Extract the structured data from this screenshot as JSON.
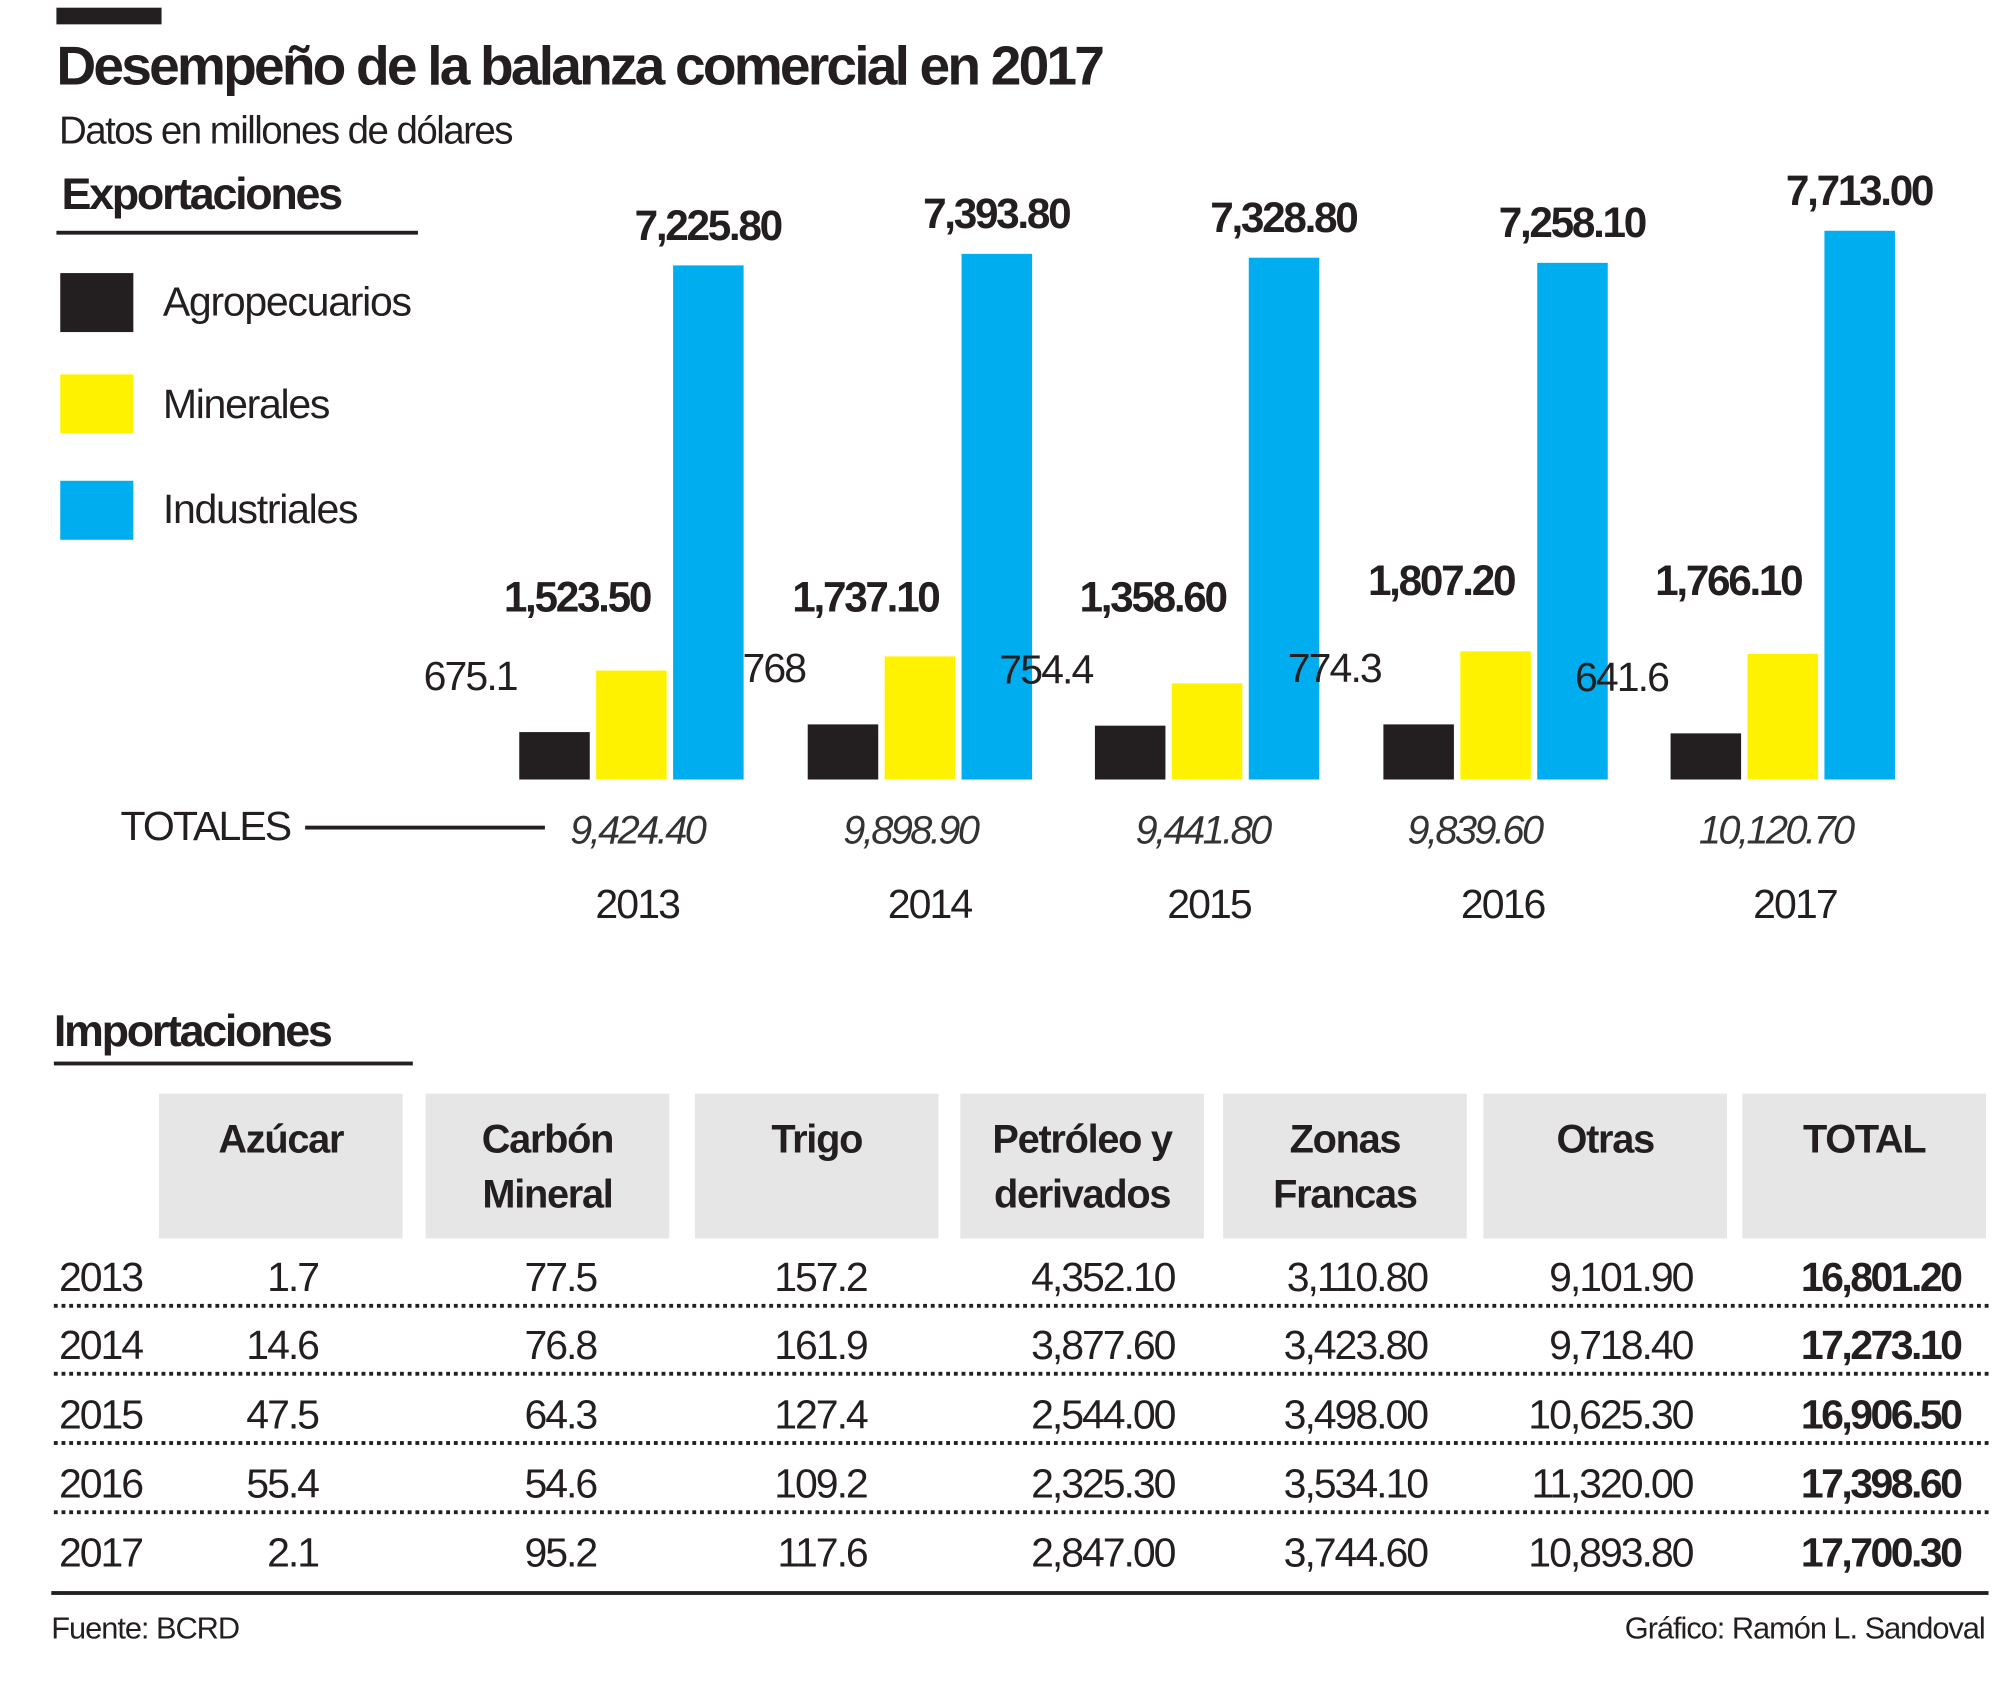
{
  "title": "Desempeño de la balanza comercial en 2017",
  "subtitle": "Datos en millones de dólares",
  "exports_heading": "Exportaciones",
  "imports_heading": "Importaciones",
  "totals_label": "TOTALES",
  "source": "Fuente: BCRD",
  "credit": "Gráfico: Ramón L. Sandoval",
  "chart_data": {
    "type": "bar",
    "title": "Exportaciones",
    "categories": [
      "2013",
      "2014",
      "2015",
      "2016",
      "2017"
    ],
    "series": [
      {
        "name": "Agropecuarios",
        "color": "#231f20",
        "values": [
          675.1,
          768,
          754.4,
          774.3,
          641.6
        ],
        "labels": [
          "675.1",
          "768",
          "754.4",
          "774.3",
          "641.6"
        ]
      },
      {
        "name": "Minerales",
        "color": "#fff200",
        "values": [
          1523.5,
          1737.1,
          1358.6,
          1807.2,
          1766.1
        ],
        "labels": [
          "1,523.50",
          "1,737.10",
          "1,358.60",
          "1,807.20",
          "1,766.10"
        ]
      },
      {
        "name": "Industriales",
        "color": "#00aeef",
        "values": [
          7225.8,
          7393.8,
          7328.8,
          7258.1,
          7713.0
        ],
        "labels": [
          "7,225.80",
          "7,393.80",
          "7,328.80",
          "7,258.10",
          "7,713.00"
        ]
      }
    ],
    "totals": [
      "9,424.40",
      "9,898.90",
      "9,441.80",
      "9,839.60",
      "10,120.70"
    ],
    "legend": "left",
    "grid": false,
    "ylim": [
      0,
      8000
    ]
  },
  "imports": {
    "columns": [
      "Azúcar",
      "Carbón Mineral",
      "Trigo",
      "Petróleo y derivados",
      "Zonas Francas",
      "Otras",
      "TOTAL"
    ],
    "rows": [
      {
        "year": "2013",
        "values": [
          "1.7",
          "77.5",
          "157.2",
          "4,352.10",
          "3,110.80",
          "9,101.90",
          "16,801.20"
        ]
      },
      {
        "year": "2014",
        "values": [
          "14.6",
          "76.8",
          "161.9",
          "3,877.60",
          "3,423.80",
          "9,718.40",
          "17,273.10"
        ]
      },
      {
        "year": "2015",
        "values": [
          "47.5",
          "64.3",
          "127.4",
          "2,544.00",
          "3,498.00",
          "10,625.30",
          "16,906.50"
        ]
      },
      {
        "year": "2016",
        "values": [
          "55.4",
          "54.6",
          "109.2",
          "2,325.30",
          "3,534.10",
          "11,320.00",
          "17,398.60"
        ]
      },
      {
        "year": "2017",
        "values": [
          "2.1",
          "95.2",
          "117.6",
          "2,847.00",
          "3,744.60",
          "10,893.80",
          "17,700.30"
        ]
      }
    ]
  }
}
